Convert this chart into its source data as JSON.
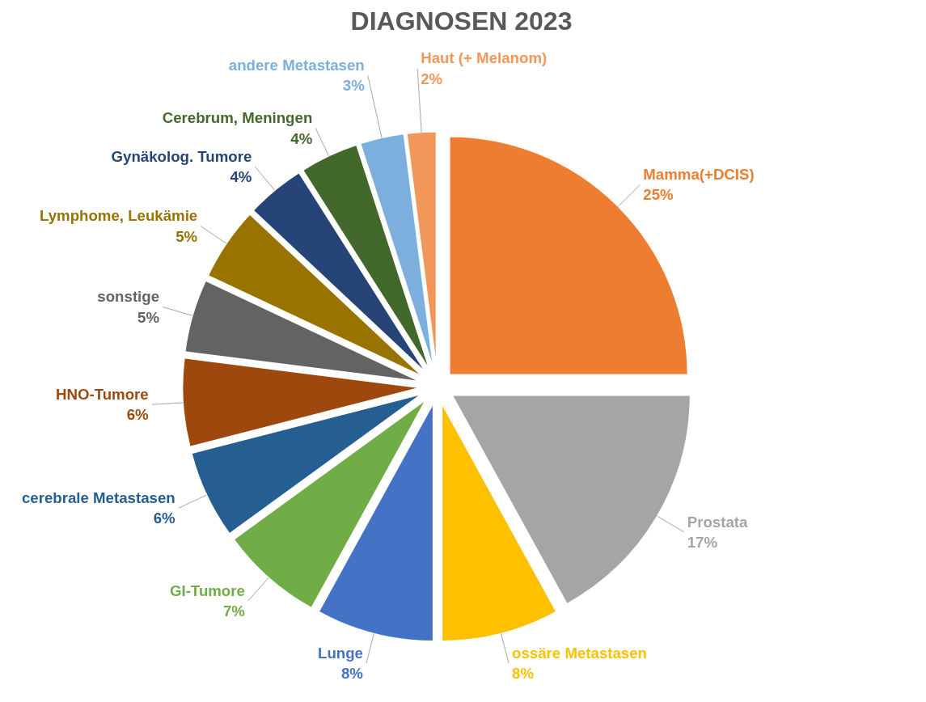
{
  "chart_data": {
    "type": "pie",
    "title": "DIAGNOSEN 2023",
    "categories": [
      "Mamma(+DCIS)",
      "Prostata",
      "ossäre Metastasen",
      "Lunge",
      "GI-Tumore",
      "cerebrale Metastasen",
      "HNO-Tumore",
      "sonstige",
      "Lymphome, Leukämie",
      "Gynäkolog. Tumore",
      "Cerebrum, Meningen",
      "andere Metastasen",
      "Haut (+ Melanom)"
    ],
    "values": [
      25,
      17,
      8,
      8,
      7,
      6,
      6,
      5,
      5,
      4,
      4,
      3,
      2
    ],
    "value_labels": [
      "25%",
      "17%",
      "8%",
      "8%",
      "7%",
      "6%",
      "6%",
      "5%",
      "5%",
      "4%",
      "4%",
      "3%",
      "2%"
    ],
    "colors": [
      "#ed7d31",
      "#a5a5a5",
      "#ffc000",
      "#4472c4",
      "#70ad47",
      "#255e91",
      "#9e480e",
      "#636363",
      "#997300",
      "#264478",
      "#43682b",
      "#7cafdd",
      "#f1975a"
    ]
  }
}
